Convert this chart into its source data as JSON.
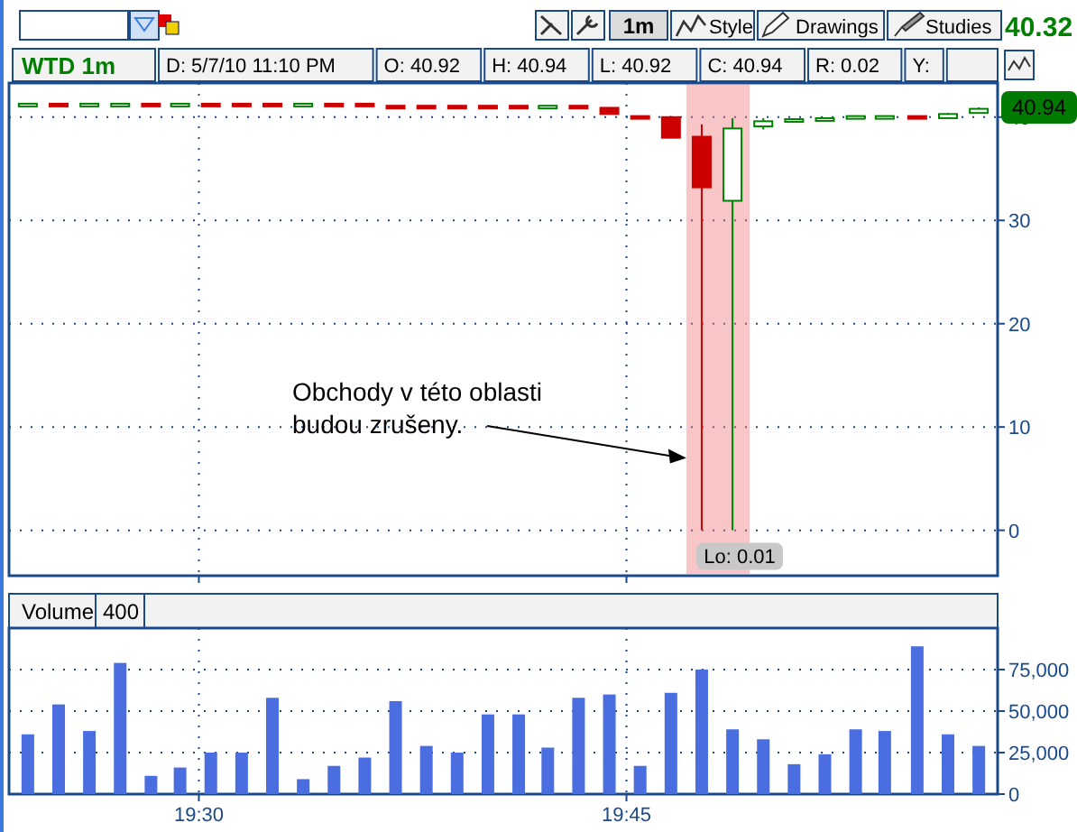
{
  "chart_data": [
    {
      "type": "candlestick",
      "title": "WTD 1m",
      "x": [
        19.4,
        19.418,
        19.436,
        19.454,
        19.472,
        19.489,
        19.507,
        19.525,
        19.543,
        19.561,
        19.579,
        19.597,
        19.615,
        19.633,
        19.651,
        19.669,
        19.687,
        19.704,
        19.722,
        19.74,
        19.758,
        19.776,
        19.794,
        19.812,
        19.83,
        19.848,
        19.866,
        19.884,
        19.901,
        19.92,
        19.938,
        19.956
      ],
      "ohlc": [
        [
          41.2,
          41.3,
          41.2,
          41.3
        ],
        [
          41.3,
          41.3,
          41.2,
          41.2
        ],
        [
          41.2,
          41.3,
          41.2,
          41.3
        ],
        [
          41.2,
          41.3,
          41.2,
          41.3
        ],
        [
          41.3,
          41.3,
          41.2,
          41.2
        ],
        [
          41.2,
          41.3,
          41.2,
          41.3
        ],
        [
          41.3,
          41.3,
          41.2,
          41.2
        ],
        [
          41.3,
          41.3,
          41.2,
          41.2
        ],
        [
          41.3,
          41.3,
          41.2,
          41.2
        ],
        [
          41.2,
          41.3,
          41.2,
          41.3
        ],
        [
          41.3,
          41.3,
          41.2,
          41.2
        ],
        [
          41.3,
          41.3,
          41.2,
          41.2
        ],
        [
          41.1,
          41.1,
          41.0,
          41.0
        ],
        [
          41.1,
          41.1,
          41.0,
          41.0
        ],
        [
          41.1,
          41.1,
          41.0,
          41.0
        ],
        [
          41.1,
          41.1,
          41.0,
          41.0
        ],
        [
          41.1,
          41.1,
          41.0,
          41.0
        ],
        [
          41.0,
          41.1,
          41.0,
          41.1
        ],
        [
          41.1,
          41.1,
          41.0,
          41.0
        ],
        [
          40.9,
          40.9,
          40.3,
          40.3
        ],
        [
          40.1,
          40.1,
          39.9,
          39.9
        ],
        [
          40.0,
          40.1,
          38.0,
          38.0
        ],
        [
          38.1,
          39.3,
          0.01,
          33.2
        ],
        [
          31.9,
          39.9,
          0.01,
          38.9
        ],
        [
          39.1,
          39.9,
          38.8,
          39.6
        ],
        [
          39.6,
          39.8,
          39.5,
          39.8
        ],
        [
          39.8,
          39.9,
          39.8,
          39.9
        ],
        [
          40.0,
          40.1,
          40.0,
          40.1
        ],
        [
          40.0,
          40.1,
          40.0,
          40.1
        ],
        [
          40.1,
          40.1,
          40.0,
          40.0
        ],
        [
          39.9,
          40.4,
          39.9,
          40.3
        ],
        [
          40.4,
          40.94,
          40.4,
          40.8
        ]
      ],
      "colors": [
        "#008000",
        "#cc0000",
        "#008000",
        "#008000",
        "#cc0000",
        "#008000",
        "#cc0000",
        "#cc0000",
        "#cc0000",
        "#008000",
        "#cc0000",
        "#cc0000",
        "#cc0000",
        "#cc0000",
        "#cc0000",
        "#cc0000",
        "#cc0000",
        "#008000",
        "#cc0000",
        "#cc0000",
        "#cc0000",
        "#cc0000",
        "#cc0000",
        "#008000",
        "#008000",
        "#008000",
        "#008000",
        "#008000",
        "#008000",
        "#cc0000",
        "#008000",
        "#008000"
      ],
      "xlim": [
        19.389,
        19.967
      ],
      "ylim": [
        -4.4,
        43.3
      ],
      "yticks": [
        0,
        10,
        20,
        30,
        40
      ],
      "tick_labels": "y",
      "grid": true,
      "bands": [
        {
          "axis": "x",
          "from": 19.785,
          "to": 19.822,
          "color": "#f08080"
        }
      ],
      "annotations": [
        "1m",
        "Style",
        "Drawings",
        "Studies",
        "40.32",
        "D: 5/7/10 11:10 PM",
        "O: 40.92",
        "H: 40.94",
        "L: 40.92",
        "C: 40.94",
        "R: 0.02",
        "Y:",
        {
          "text": "40.94",
          "y": 40.94
        },
        {
          "text": "Obchody v této oblasti budou zrušeny.",
          "x": 19.785,
          "y": 7
        },
        {
          "text": "Lo: 0.01",
          "x": 19.812,
          "y": 0.01
        }
      ]
    },
    {
      "type": "bar",
      "title": "Volume",
      "annotations": [
        "400"
      ],
      "x": [
        19.4,
        19.418,
        19.436,
        19.454,
        19.472,
        19.489,
        19.507,
        19.525,
        19.543,
        19.561,
        19.579,
        19.597,
        19.615,
        19.633,
        19.651,
        19.669,
        19.687,
        19.704,
        19.722,
        19.74,
        19.758,
        19.776,
        19.794,
        19.812,
        19.83,
        19.848,
        19.866,
        19.884,
        19.901,
        19.92,
        19.938,
        19.956
      ],
      "values": [
        36000,
        54000,
        38000,
        79000,
        11000,
        16000,
        25000,
        25000,
        58000,
        9000,
        17000,
        22000,
        56000,
        29000,
        25000,
        48000,
        48000,
        28000,
        58000,
        60000,
        17000,
        61000,
        75000,
        39000,
        33000,
        18000,
        24000,
        39000,
        38000,
        89000,
        36000,
        29000
      ],
      "color": "#4a6ee0",
      "xlim": [
        19.389,
        19.967
      ],
      "xticks": [
        {
          "value": 19.5,
          "label": "19:30"
        },
        {
          "value": 19.75,
          "label": "19:45"
        }
      ],
      "ylim": [
        0,
        100000
      ],
      "yticks": [
        0,
        {
          "value": 25000,
          "label": "25,000"
        },
        {
          "value": 50000,
          "label": "50,000"
        },
        {
          "value": 75000,
          "label": "75,000"
        }
      ],
      "grid": true
    }
  ]
}
